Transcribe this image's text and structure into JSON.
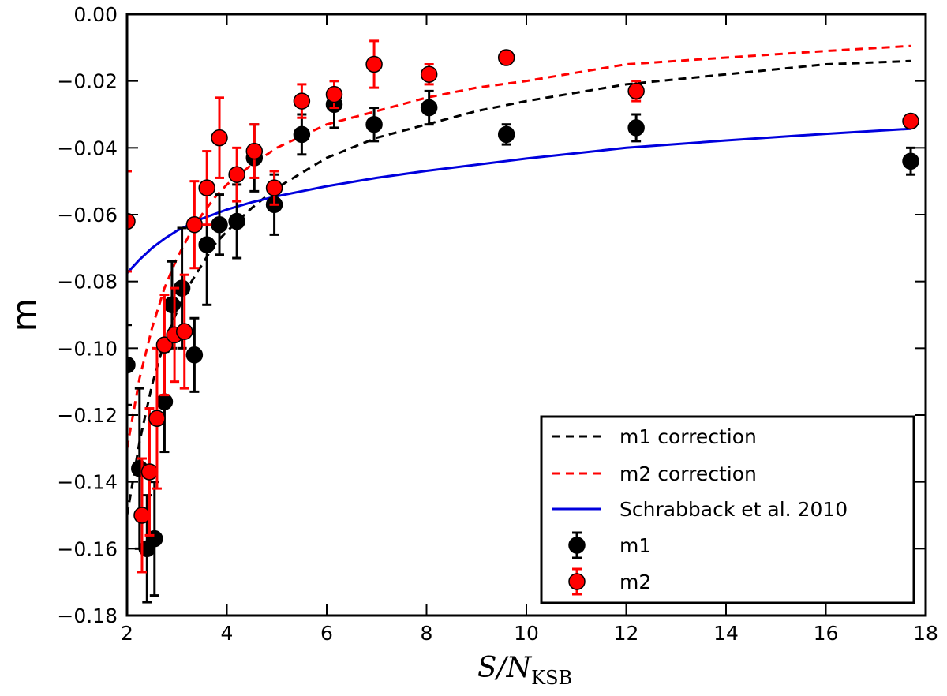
{
  "chart_data": {
    "type": "scatter",
    "title": "",
    "xlabel": "S/N",
    "xlabel_subscript": "KSB",
    "ylabel": "m",
    "xlim": [
      2,
      18
    ],
    "ylim": [
      -0.18,
      0.0
    ],
    "xticks": [
      2,
      4,
      6,
      8,
      10,
      12,
      14,
      16,
      18
    ],
    "xtick_labels": [
      "2",
      "4",
      "6",
      "8",
      "10",
      "12",
      "14",
      "16",
      "18"
    ],
    "yticks": [
      0.0,
      -0.02,
      -0.04,
      -0.06,
      -0.08,
      -0.1,
      -0.12,
      -0.14,
      -0.16,
      -0.18
    ],
    "ytick_labels": [
      "0.00",
      "−0.02",
      "−0.04",
      "−0.06",
      "−0.08",
      "−0.10",
      "−0.12",
      "−0.14",
      "−0.16",
      "−0.18"
    ],
    "grid": false,
    "legend_position": "bottom-right",
    "legend": [
      "m1 correction",
      "m2 correction",
      "Schrabback et al. 2010",
      "m1",
      "m2"
    ],
    "lines": [
      {
        "name": "m1 correction",
        "style": "dashed",
        "color": "#000000",
        "x": [
          2.0,
          2.25,
          2.5,
          2.75,
          3.0,
          3.25,
          3.5,
          3.75,
          4.0,
          4.5,
          5.0,
          6.0,
          7.0,
          8.0,
          9.0,
          10.0,
          12.0,
          14.0,
          16.0,
          17.7
        ],
        "y": [
          -0.15,
          -0.128,
          -0.111,
          -0.098,
          -0.089,
          -0.081,
          -0.075,
          -0.069,
          -0.065,
          -0.058,
          -0.052,
          -0.043,
          -0.037,
          -0.033,
          -0.029,
          -0.026,
          -0.021,
          -0.018,
          -0.015,
          -0.014
        ]
      },
      {
        "name": "m2 correction",
        "style": "dashed",
        "color": "#ff0000",
        "x": [
          2.0,
          2.25,
          2.5,
          2.75,
          3.0,
          3.25,
          3.5,
          3.75,
          4.0,
          4.5,
          5.0,
          6.0,
          7.0,
          8.0,
          9.0,
          10.0,
          12.0,
          14.0,
          16.0,
          17.7
        ],
        "y": [
          -0.13,
          -0.109,
          -0.094,
          -0.082,
          -0.073,
          -0.066,
          -0.06,
          -0.055,
          -0.051,
          -0.045,
          -0.04,
          -0.033,
          -0.029,
          -0.025,
          -0.022,
          -0.02,
          -0.015,
          -0.013,
          -0.011,
          -0.0095
        ]
      },
      {
        "name": "Schrabback et al. 2010",
        "style": "solid",
        "color": "#0000dd",
        "x": [
          2.0,
          2.25,
          2.5,
          2.75,
          3.0,
          3.5,
          4.0,
          4.5,
          5.0,
          6.0,
          7.0,
          8.0,
          10.0,
          12.0,
          14.0,
          16.0,
          17.7
        ],
        "y": [
          -0.0775,
          -0.0735,
          -0.07,
          -0.0672,
          -0.0648,
          -0.0612,
          -0.0585,
          -0.0563,
          -0.0545,
          -0.0515,
          -0.049,
          -0.0469,
          -0.0432,
          -0.04,
          -0.0378,
          -0.0358,
          -0.0343
        ]
      }
    ],
    "series": [
      {
        "name": "m1",
        "marker_color": "#000000",
        "errorbar_color": "#000000",
        "points": [
          {
            "x": 2.0,
            "y": -0.105,
            "err": 0.012
          },
          {
            "x": 2.25,
            "y": -0.136,
            "err": 0.024
          },
          {
            "x": 2.4,
            "y": -0.16,
            "err": 0.016
          },
          {
            "x": 2.55,
            "y": -0.157,
            "err": 0.017
          },
          {
            "x": 2.75,
            "y": -0.116,
            "err": 0.015
          },
          {
            "x": 2.9,
            "y": -0.087,
            "err": 0.013
          },
          {
            "x": 3.1,
            "y": -0.082,
            "err": 0.018
          },
          {
            "x": 3.35,
            "y": -0.102,
            "err": 0.011
          },
          {
            "x": 3.6,
            "y": -0.069,
            "err": 0.018
          },
          {
            "x": 3.85,
            "y": -0.063,
            "err": 0.009
          },
          {
            "x": 4.2,
            "y": -0.062,
            "err": 0.011
          },
          {
            "x": 4.55,
            "y": -0.043,
            "err": 0.01
          },
          {
            "x": 4.95,
            "y": -0.057,
            "err": 0.009
          },
          {
            "x": 5.5,
            "y": -0.036,
            "err": 0.006
          },
          {
            "x": 6.15,
            "y": -0.027,
            "err": 0.007
          },
          {
            "x": 6.95,
            "y": -0.033,
            "err": 0.005
          },
          {
            "x": 8.05,
            "y": -0.028,
            "err": 0.005
          },
          {
            "x": 9.6,
            "y": -0.036,
            "err": 0.003
          },
          {
            "x": 12.2,
            "y": -0.034,
            "err": 0.004
          },
          {
            "x": 17.7,
            "y": -0.044,
            "err": 0.004
          }
        ]
      },
      {
        "name": "m2",
        "marker_color": "#ff0000",
        "errorbar_color": "#ff0000",
        "points": [
          {
            "x": 2.0,
            "y": -0.062,
            "err": 0.015
          },
          {
            "x": 2.3,
            "y": -0.15,
            "err": 0.017
          },
          {
            "x": 2.45,
            "y": -0.137,
            "err": 0.019
          },
          {
            "x": 2.6,
            "y": -0.121,
            "err": 0.021
          },
          {
            "x": 2.75,
            "y": -0.099,
            "err": 0.015
          },
          {
            "x": 2.95,
            "y": -0.096,
            "err": 0.014
          },
          {
            "x": 3.15,
            "y": -0.095,
            "err": 0.017
          },
          {
            "x": 3.35,
            "y": -0.063,
            "err": 0.013
          },
          {
            "x": 3.6,
            "y": -0.052,
            "err": 0.011
          },
          {
            "x": 3.85,
            "y": -0.037,
            "err": 0.012
          },
          {
            "x": 4.2,
            "y": -0.048,
            "err": 0.008
          },
          {
            "x": 4.55,
            "y": -0.041,
            "err": 0.008
          },
          {
            "x": 4.95,
            "y": -0.052,
            "err": 0.005
          },
          {
            "x": 5.5,
            "y": -0.026,
            "err": 0.005
          },
          {
            "x": 6.15,
            "y": -0.024,
            "err": 0.004
          },
          {
            "x": 6.95,
            "y": -0.015,
            "err": 0.007
          },
          {
            "x": 8.05,
            "y": -0.018,
            "err": 0.003
          },
          {
            "x": 9.6,
            "y": -0.013,
            "err": 0.002
          },
          {
            "x": 12.2,
            "y": -0.023,
            "err": 0.003
          },
          {
            "x": 17.7,
            "y": -0.032,
            "err": 0.001
          }
        ]
      }
    ]
  }
}
